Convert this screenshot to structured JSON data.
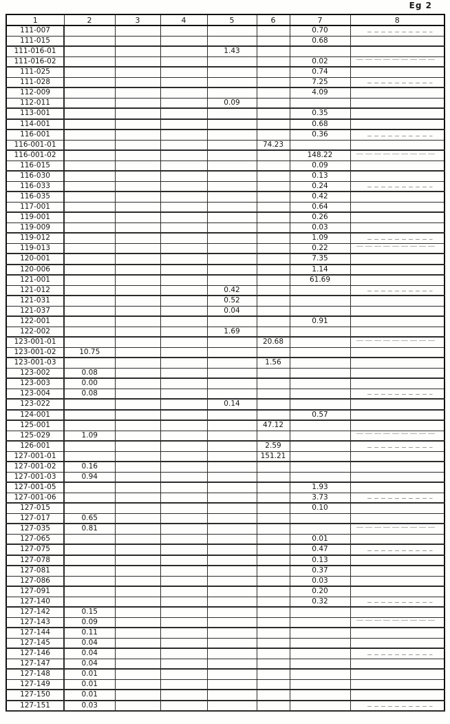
{
  "page_label": "Eg 2",
  "table": {
    "columns": [
      "1",
      "2",
      "3",
      "4",
      "5",
      "6",
      "7",
      "8"
    ],
    "rows": [
      {
        "cells": [
          "111-007",
          "",
          "",
          "",
          "",
          "",
          "0.70",
          ""
        ]
      },
      {
        "cells": [
          "111-015",
          "",
          "",
          "",
          "",
          "",
          "0.68",
          ""
        ]
      },
      {
        "cells": [
          "111-016-01",
          "",
          "",
          "",
          "1.43",
          "",
          "",
          ""
        ]
      },
      {
        "cells": [
          "111-016-02",
          "",
          "",
          "",
          "",
          "",
          "0.02",
          ""
        ]
      },
      {
        "cells": [
          "111-025",
          "",
          "",
          "",
          "",
          "",
          "0.74",
          ""
        ]
      },
      {
        "cells": [
          "111-028",
          "",
          "",
          "",
          "",
          "",
          "7.25",
          ""
        ]
      },
      {
        "cells": [
          "112-009",
          "",
          "",
          "",
          "",
          "",
          "4.09",
          ""
        ]
      },
      {
        "cells": [
          "112-011",
          "",
          "",
          "",
          "0.09",
          "",
          "",
          ""
        ]
      },
      {
        "cells": [
          "113-001",
          "",
          "",
          "",
          "",
          "",
          "0.35",
          ""
        ]
      },
      {
        "cells": [
          "114-001",
          "",
          "",
          "",
          "",
          "",
          "0.68",
          ""
        ]
      },
      {
        "cells": [
          "116-001",
          "",
          "",
          "",
          "",
          "",
          "0.36",
          ""
        ]
      },
      {
        "cells": [
          "116-001-01",
          "",
          "",
          "",
          "",
          "74.23",
          "",
          ""
        ]
      },
      {
        "cells": [
          "116-001-02",
          "",
          "",
          "",
          "",
          "",
          "148.22",
          ""
        ]
      },
      {
        "cells": [
          "116-015",
          "",
          "",
          "",
          "",
          "",
          "0.09",
          ""
        ]
      },
      {
        "cells": [
          "116-030",
          "",
          "",
          "",
          "",
          "",
          "0.13",
          ""
        ]
      },
      {
        "cells": [
          "116-033",
          "",
          "",
          "",
          "",
          "",
          "0.24",
          ""
        ]
      },
      {
        "cells": [
          "116-035",
          "",
          "",
          "",
          "",
          "",
          "0.42",
          ""
        ]
      },
      {
        "cells": [
          "117-001",
          "",
          "",
          "",
          "",
          "",
          "0.64",
          ""
        ]
      },
      {
        "cells": [
          "119-001",
          "",
          "",
          "",
          "",
          "",
          "0.26",
          ""
        ]
      },
      {
        "cells": [
          "119-009",
          "",
          "",
          "",
          "",
          "",
          "0.03",
          ""
        ]
      },
      {
        "cells": [
          "119-012",
          "",
          "",
          "",
          "",
          "",
          "1.09",
          ""
        ]
      },
      {
        "cells": [
          "119-013",
          "",
          "",
          "",
          "",
          "",
          "0.22",
          ""
        ]
      },
      {
        "cells": [
          "120-001",
          "",
          "",
          "",
          "",
          "",
          "7.35",
          ""
        ]
      },
      {
        "cells": [
          "120-006",
          "",
          "",
          "",
          "",
          "",
          "1.14",
          ""
        ]
      },
      {
        "cells": [
          "121-001",
          "",
          "",
          "",
          "",
          "",
          "61.69",
          ""
        ]
      },
      {
        "cells": [
          "121-012",
          "",
          "",
          "",
          "0.42",
          "",
          "",
          ""
        ]
      },
      {
        "cells": [
          "121-031",
          "",
          "",
          "",
          "0.52",
          "",
          "",
          ""
        ]
      },
      {
        "cells": [
          "121-037",
          "",
          "",
          "",
          "0.04",
          "",
          "",
          ""
        ]
      },
      {
        "cells": [
          "122-001",
          "",
          "",
          "",
          "",
          "",
          "0.91",
          ""
        ]
      },
      {
        "cells": [
          "122-002",
          "",
          "",
          "",
          "1.69",
          "",
          "",
          ""
        ]
      },
      {
        "cells": [
          "123-001-01",
          "",
          "",
          "",
          "",
          "20.68",
          "",
          ""
        ]
      },
      {
        "cells": [
          "123-001-02",
          "10.75",
          "",
          "",
          "",
          "",
          "",
          ""
        ]
      },
      {
        "cells": [
          "123-001-03",
          "",
          "",
          "",
          "",
          "1.56",
          "",
          ""
        ]
      },
      {
        "cells": [
          "123-002",
          "0.08",
          "",
          "",
          "",
          "",
          "",
          ""
        ]
      },
      {
        "cells": [
          "123-003",
          "0.00",
          "",
          "",
          "",
          "",
          "",
          ""
        ]
      },
      {
        "cells": [
          "123-004",
          "0.08",
          "",
          "",
          "",
          "",
          "",
          ""
        ]
      },
      {
        "cells": [
          "123-022",
          "",
          "",
          "",
          "0.14",
          "",
          "",
          ""
        ]
      },
      {
        "cells": [
          "124-001",
          "",
          "",
          "",
          "",
          "",
          "0.57",
          ""
        ]
      },
      {
        "cells": [
          "125-001",
          "",
          "",
          "",
          "",
          "47.12",
          "",
          ""
        ]
      },
      {
        "cells": [
          "125-029",
          "1.09",
          "",
          "",
          "",
          "",
          "",
          ""
        ]
      },
      {
        "cells": [
          "126-001",
          "",
          "",
          "",
          "",
          "2.59",
          "",
          ""
        ]
      },
      {
        "cells": [
          "127-001-01",
          "",
          "",
          "",
          "",
          "151.21",
          "",
          ""
        ]
      },
      {
        "cells": [
          "127-001-02",
          "0.16",
          "",
          "",
          "",
          "",
          "",
          ""
        ]
      },
      {
        "cells": [
          "127-001-03",
          "0.94",
          "",
          "",
          "",
          "",
          "",
          ""
        ]
      },
      {
        "cells": [
          "127-001-05",
          "",
          "",
          "",
          "",
          "",
          "1.93",
          ""
        ]
      },
      {
        "cells": [
          "127-001-06",
          "",
          "",
          "",
          "",
          "",
          "3.73",
          ""
        ]
      },
      {
        "cells": [
          "127-015",
          "",
          "",
          "",
          "",
          "",
          "0.10",
          ""
        ]
      },
      {
        "cells": [
          "127-017",
          "0.65",
          "",
          "",
          "",
          "",
          "",
          ""
        ]
      },
      {
        "cells": [
          "127-035",
          "0.81",
          "",
          "",
          "",
          "",
          "",
          ""
        ]
      },
      {
        "cells": [
          "127-065",
          "",
          "",
          "",
          "",
          "",
          "0.01",
          ""
        ]
      },
      {
        "cells": [
          "127-075",
          "",
          "",
          "",
          "",
          "",
          "0.47",
          ""
        ]
      },
      {
        "cells": [
          "127-078",
          "",
          "",
          "",
          "",
          "",
          "0.13",
          ""
        ]
      },
      {
        "cells": [
          "127-081",
          "",
          "",
          "",
          "",
          "",
          "0.37",
          ""
        ]
      },
      {
        "cells": [
          "127-086",
          "",
          "",
          "",
          "",
          "",
          "0.03",
          ""
        ]
      },
      {
        "cells": [
          "127-091",
          "",
          "",
          "",
          "",
          "",
          "0.20",
          ""
        ]
      },
      {
        "cells": [
          "127-140",
          "",
          "",
          "",
          "",
          "",
          "0.32",
          ""
        ]
      },
      {
        "cells": [
          "127-142",
          "0.15",
          "",
          "",
          "",
          "",
          "",
          ""
        ]
      },
      {
        "cells": [
          "127-143",
          "0.09",
          "",
          "",
          "",
          "",
          "",
          ""
        ]
      },
      {
        "cells": [
          "127-144",
          "0.11",
          "",
          "",
          "",
          "",
          "",
          ""
        ]
      },
      {
        "cells": [
          "127-145",
          "0.04",
          "",
          "",
          "",
          "",
          "",
          ""
        ]
      },
      {
        "cells": [
          "127-146",
          "0.04",
          "",
          "",
          "",
          "",
          "",
          ""
        ]
      },
      {
        "cells": [
          "127-147",
          "0.04",
          "",
          "",
          "",
          "",
          "",
          ""
        ]
      },
      {
        "cells": [
          "127-148",
          "0.01",
          "",
          "",
          "",
          "",
          "",
          ""
        ]
      },
      {
        "cells": [
          "127-149",
          "0.01",
          "",
          "",
          "",
          "",
          "",
          ""
        ]
      },
      {
        "cells": [
          "127-150",
          "0.01",
          "",
          "",
          "",
          "",
          "",
          ""
        ]
      },
      {
        "cells": [
          "127-151",
          "0.03",
          "",
          "",
          "",
          "",
          "",
          ""
        ]
      }
    ]
  }
}
